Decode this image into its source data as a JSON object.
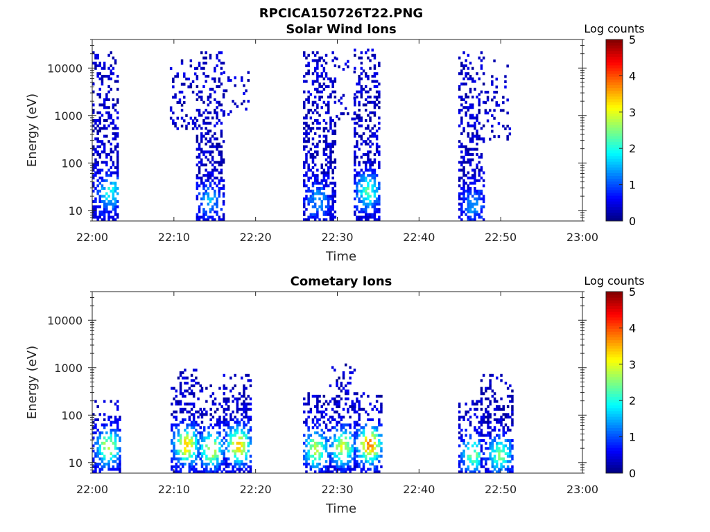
{
  "figure": {
    "title": "RPCICA150726T22.PNG"
  },
  "chart_data": [
    {
      "type": "heatmap",
      "title": "Solar Wind Ions",
      "xlabel": "Time",
      "ylabel": "Energy (eV)",
      "x_ticks": [
        "22:00",
        "22:10",
        "22:20",
        "22:30",
        "22:40",
        "22:50",
        "23:00"
      ],
      "x_range_minutes": [
        0,
        60
      ],
      "y_ticks": [
        "10",
        "100",
        "1000",
        "10000"
      ],
      "y_range_ev": [
        6,
        40000
      ],
      "y_scale": "log",
      "colorbar": {
        "label": "Log counts",
        "range": [
          0,
          5
        ],
        "ticks": [
          "0",
          "1",
          "2",
          "3",
          "4",
          "5"
        ],
        "colormap": "jet"
      },
      "activity": [
        {
          "t0": 0.0,
          "t1": 3.2,
          "emin": 6,
          "emax": 20000,
          "density": 0.55,
          "cmax": 1.9,
          "hot_t": 2.0,
          "hot_e": 22
        },
        {
          "t0": 9.5,
          "t1": 12.6,
          "emin": 500,
          "emax": 15000,
          "density": 0.22,
          "cmax": 0.8
        },
        {
          "t0": 12.7,
          "t1": 16.0,
          "emin": 6,
          "emax": 22000,
          "density": 0.5,
          "cmax": 1.4,
          "hot_t": 14.2,
          "hot_e": 15
        },
        {
          "t0": 16.0,
          "t1": 19.0,
          "emin": 1000,
          "emax": 12000,
          "density": 0.18,
          "cmax": 0.6
        },
        {
          "t0": 25.8,
          "t1": 29.8,
          "emin": 6,
          "emax": 20000,
          "density": 0.55,
          "cmax": 1.4,
          "hot_t": 27.5,
          "hot_e": 15
        },
        {
          "t0": 29.8,
          "t1": 32.0,
          "emin": 800,
          "emax": 15000,
          "density": 0.18,
          "cmax": 0.6
        },
        {
          "t0": 32.0,
          "t1": 35.0,
          "emin": 6,
          "emax": 25000,
          "density": 0.55,
          "cmax": 2.2,
          "hot_t": 33.6,
          "hot_e": 24
        },
        {
          "t0": 44.8,
          "t1": 48.0,
          "emin": 6,
          "emax": 20000,
          "density": 0.55,
          "cmax": 1.3,
          "hot_t": 46.5,
          "hot_e": 12
        },
        {
          "t0": 48.0,
          "t1": 51.0,
          "emin": 300,
          "emax": 15000,
          "density": 0.2,
          "cmax": 0.6
        }
      ]
    },
    {
      "type": "heatmap",
      "title": "Cometary Ions",
      "xlabel": "Time",
      "ylabel": "Energy (eV)",
      "x_ticks": [
        "22:00",
        "22:10",
        "22:20",
        "22:30",
        "22:40",
        "22:50",
        "23:00"
      ],
      "x_range_minutes": [
        0,
        60
      ],
      "y_ticks": [
        "10",
        "100",
        "1000",
        "10000"
      ],
      "y_range_ev": [
        6,
        40000
      ],
      "y_scale": "log",
      "colorbar": {
        "label": "Log counts",
        "range": [
          0,
          5
        ],
        "ticks": [
          "0",
          "1",
          "2",
          "3",
          "4",
          "5"
        ],
        "colormap": "jet"
      },
      "activity": [
        {
          "t0": 0.0,
          "t1": 3.3,
          "emin": 6,
          "emax": 200,
          "density": 0.55,
          "cmax": 2.8,
          "hot_t": 1.8,
          "hot_e": 20
        },
        {
          "t0": 9.6,
          "t1": 13.2,
          "emin": 6,
          "emax": 900,
          "density": 0.6,
          "cmax": 3.4,
          "hot_t": 11.4,
          "hot_e": 22
        },
        {
          "t0": 13.3,
          "t1": 16.0,
          "emin": 6,
          "emax": 400,
          "density": 0.55,
          "cmax": 2.9,
          "hot_t": 14.5,
          "hot_e": 18
        },
        {
          "t0": 16.0,
          "t1": 19.5,
          "emin": 6,
          "emax": 700,
          "density": 0.6,
          "cmax": 3.4,
          "hot_t": 17.8,
          "hot_e": 22
        },
        {
          "t0": 25.8,
          "t1": 29.0,
          "emin": 6,
          "emax": 300,
          "density": 0.55,
          "cmax": 2.8,
          "hot_t": 27.3,
          "hot_e": 18
        },
        {
          "t0": 29.0,
          "t1": 32.0,
          "emin": 6,
          "emax": 1100,
          "density": 0.55,
          "cmax": 2.9,
          "hot_t": 30.5,
          "hot_e": 20
        },
        {
          "t0": 32.0,
          "t1": 35.5,
          "emin": 6,
          "emax": 300,
          "density": 0.55,
          "cmax": 3.7,
          "hot_t": 33.8,
          "hot_e": 22
        },
        {
          "t0": 44.8,
          "t1": 47.5,
          "emin": 6,
          "emax": 200,
          "density": 0.55,
          "cmax": 2.4,
          "hot_t": 46.5,
          "hot_e": 14
        },
        {
          "t0": 47.5,
          "t1": 51.3,
          "emin": 6,
          "emax": 700,
          "density": 0.55,
          "cmax": 2.4,
          "hot_t": 49.8,
          "hot_e": 14
        }
      ]
    }
  ]
}
